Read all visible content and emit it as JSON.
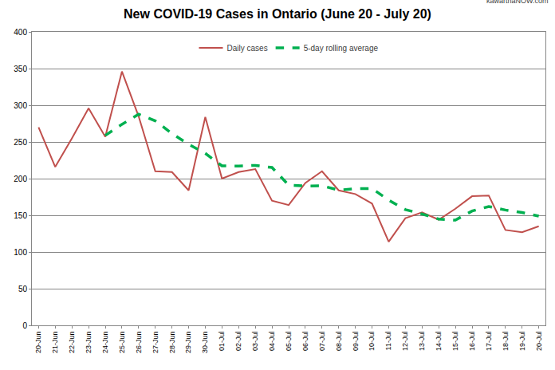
{
  "chart_data": {
    "type": "line",
    "title": "New COVID-19 Cases in Ontario (June 20 - July 20)",
    "annotations": [
      "kawarthaNOW.com"
    ],
    "categories": [
      "20-Jun",
      "21-Jun",
      "22-Jun",
      "23-Jun",
      "24-Jun",
      "25-Jun",
      "26-Jun",
      "27-Jun",
      "28-Jun",
      "29-Jun",
      "30-Jun",
      "01-Jul",
      "02-Jul",
      "03-Jul",
      "04-Jul",
      "05-Jul",
      "06-Jul",
      "07-Jul",
      "08-Jul",
      "09-Jul",
      "10-Jul",
      "11-Jul",
      "12-Jul",
      "13-Jul",
      "14-Jul",
      "15-Jul",
      "16-Jul",
      "17-Jul",
      "18-Jul",
      "19-Jul",
      "20-Jul"
    ],
    "series": [
      {
        "name": "Daily cases",
        "color": "#c0504d",
        "line_style": "solid",
        "values": [
          270,
          216,
          255,
          296,
          257,
          346,
          285,
          210,
          209,
          184,
          284,
          200,
          209,
          213,
          170,
          164,
          194,
          210,
          184,
          179,
          166,
          114,
          146,
          154,
          144,
          159,
          176,
          177,
          130,
          127,
          135
        ]
      },
      {
        "name": "5-day rolling average",
        "color": "#00b050",
        "line_style": "dashed",
        "values": [
          null,
          null,
          null,
          null,
          258.8,
          274,
          287.8,
          278.8,
          261.4,
          246.8,
          234.4,
          217.4,
          217.2,
          218,
          215.2,
          191.2,
          190,
          190.2,
          184.4,
          186.2,
          186.6,
          170.6,
          157.8,
          151.8,
          144.8,
          143.4,
          155.8,
          162,
          157.2,
          153.8,
          149
        ]
      }
    ],
    "ylim": [
      0,
      400
    ],
    "yticks": [
      0,
      50,
      100,
      150,
      200,
      250,
      300,
      350,
      400
    ],
    "grid": true,
    "legend": "top"
  }
}
